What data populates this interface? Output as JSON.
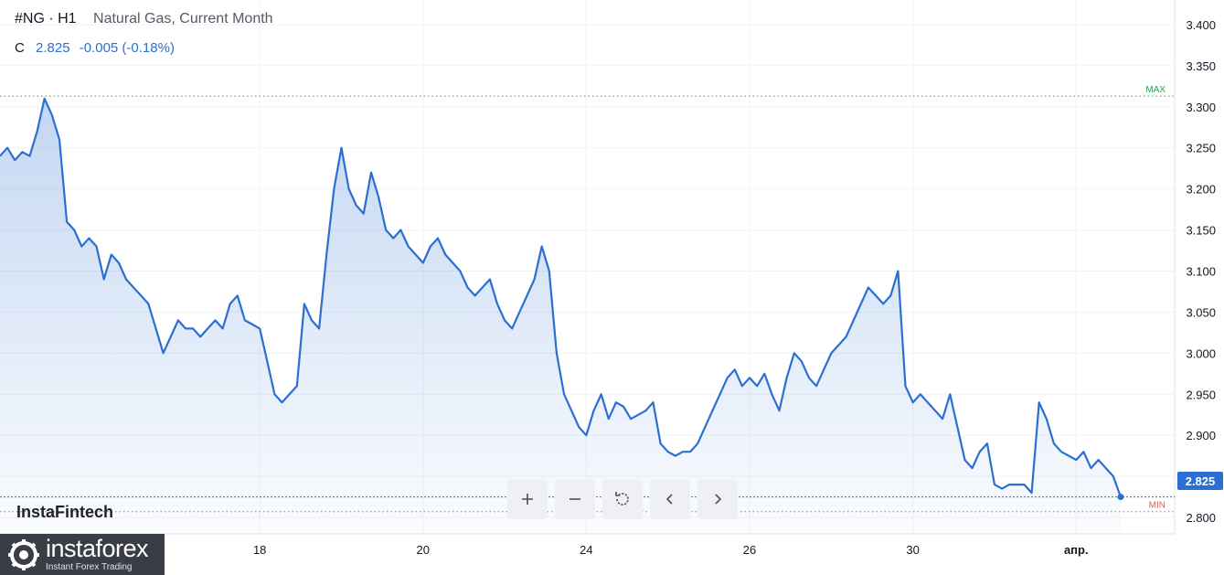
{
  "header": {
    "symbol": "#NG · H1",
    "description": "Natural Gas, Current Month",
    "ohlc_label": "C",
    "last_value": "2.825",
    "change": "-0.005 (-0.18%)"
  },
  "toolbar": {
    "zoom_in_icon": "plus-icon",
    "zoom_out_icon": "minus-icon",
    "reset_icon": "reset-icon",
    "scroll_left_icon": "chevron-left-icon",
    "scroll_right_icon": "chevron-right-icon"
  },
  "watermark": "InstaFintech",
  "logo": {
    "name": "instaforex",
    "tagline": "Instant Forex Trading"
  },
  "colors": {
    "line": "#2a6fd1",
    "max_line": "#2e9e57",
    "min_line": "#e05a5a",
    "price_tag": "#2a6fd1"
  },
  "chart_data": {
    "type": "area",
    "y_ticks": [
      "3.400",
      "3.350",
      "3.300",
      "3.250",
      "3.200",
      "3.150",
      "3.100",
      "3.050",
      "3.000",
      "2.950",
      "2.900",
      "2.850",
      "2.800"
    ],
    "ylim": [
      2.78,
      3.43
    ],
    "x_ticks": [
      {
        "label": "18",
        "index": 35
      },
      {
        "label": "20",
        "index": 57
      },
      {
        "label": "24",
        "index": 79
      },
      {
        "label": "26",
        "index": 101
      },
      {
        "label": "30",
        "index": 123
      },
      {
        "label": "апр.",
        "index": 145
      }
    ],
    "max_label": "MAX",
    "max_value": 3.313,
    "min_label": "MIN",
    "min_value": 2.807,
    "last_price_label": "2.825",
    "last_price": 2.825,
    "values": [
      3.24,
      3.25,
      3.235,
      3.245,
      3.24,
      3.27,
      3.31,
      3.29,
      3.26,
      3.16,
      3.15,
      3.13,
      3.14,
      3.13,
      3.09,
      3.12,
      3.11,
      3.09,
      3.08,
      3.07,
      3.06,
      3.03,
      3.0,
      3.02,
      3.04,
      3.03,
      3.03,
      3.02,
      3.03,
      3.04,
      3.03,
      3.06,
      3.07,
      3.04,
      3.035,
      3.03,
      2.99,
      2.95,
      2.94,
      2.95,
      2.96,
      3.06,
      3.04,
      3.03,
      3.12,
      3.2,
      3.25,
      3.2,
      3.18,
      3.17,
      3.22,
      3.19,
      3.15,
      3.14,
      3.15,
      3.13,
      3.12,
      3.11,
      3.13,
      3.14,
      3.12,
      3.11,
      3.1,
      3.08,
      3.07,
      3.08,
      3.09,
      3.06,
      3.04,
      3.03,
      3.05,
      3.07,
      3.09,
      3.13,
      3.1,
      3.0,
      2.95,
      2.93,
      2.91,
      2.9,
      2.93,
      2.95,
      2.92,
      2.94,
      2.935,
      2.92,
      2.925,
      2.93,
      2.94,
      2.89,
      2.88,
      2.875,
      2.88,
      2.88,
      2.89,
      2.91,
      2.93,
      2.95,
      2.97,
      2.98,
      2.96,
      2.97,
      2.96,
      2.975,
      2.95,
      2.93,
      2.97,
      3.0,
      2.99,
      2.97,
      2.96,
      2.98,
      3.0,
      3.01,
      3.02,
      3.04,
      3.06,
      3.08,
      3.07,
      3.06,
      3.07,
      3.1,
      2.96,
      2.94,
      2.95,
      2.94,
      2.93,
      2.92,
      2.95,
      2.91,
      2.87,
      2.86,
      2.88,
      2.89,
      2.84,
      2.835,
      2.84,
      2.84,
      2.84,
      2.83,
      2.94,
      2.92,
      2.89,
      2.88,
      2.875,
      2.87,
      2.88,
      2.86,
      2.87,
      2.86,
      2.85,
      2.825
    ]
  }
}
